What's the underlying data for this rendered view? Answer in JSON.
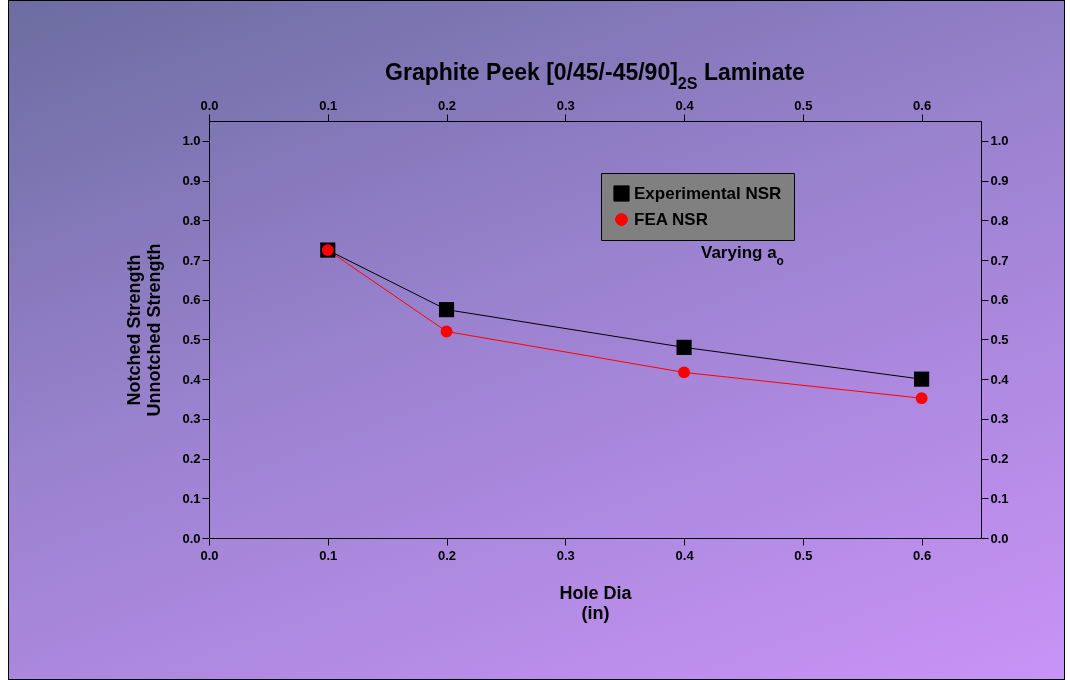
{
  "chart_data": {
    "type": "line",
    "title": "Graphite Peek [0/45/-45/90]$_{2S}$ Laminate",
    "xlabel": "Hole Dia\n(in)",
    "ylabel": "Notched Strength\nUnnotched Strength",
    "x": [
      0.1,
      0.2,
      0.4,
      0.6
    ],
    "series": [
      {
        "name": "Experimental NSR",
        "color": "#000000",
        "marker": "square",
        "values": [
          0.725,
          0.575,
          0.48,
          0.4
        ]
      },
      {
        "name": "FEA NSR",
        "color": "#ff0000",
        "marker": "circle",
        "values": [
          0.725,
          0.52,
          0.417,
          0.352
        ]
      }
    ],
    "xlim": [
      0,
      0.65
    ],
    "xticks": [
      {
        "value": 0,
        "label": "0.0"
      },
      0.1,
      0.2,
      0.3,
      0.4,
      0.5,
      0.6
    ],
    "x2lim": [
      0,
      0.65
    ],
    "x2ticks": [
      {
        "value": 0,
        "label": "0.0"
      },
      0.1,
      0.2,
      0.3,
      0.4,
      0.5,
      0.6
    ],
    "ylim": [
      0,
      1.05
    ],
    "yticks": [
      {
        "value": 0,
        "label": "0.0"
      },
      0.1,
      0.2,
      0.3,
      0.4,
      0.5,
      0.6,
      0.7,
      0.8,
      0.9,
      {
        "value": 1,
        "label": "1.0"
      }
    ],
    "y2lim": [
      0,
      1.05
    ],
    "y2ticks": [
      {
        "value": 0,
        "label": "0.0"
      },
      0.1,
      0.2,
      0.3,
      0.4,
      0.5,
      0.6,
      0.7,
      0.8,
      0.9,
      {
        "value": 1,
        "label": "1.0"
      }
    ],
    "annotations": [
      "Varying a$_{o}$"
    ],
    "legend": "top right",
    "grid": false,
    "line_style": "solid"
  }
}
